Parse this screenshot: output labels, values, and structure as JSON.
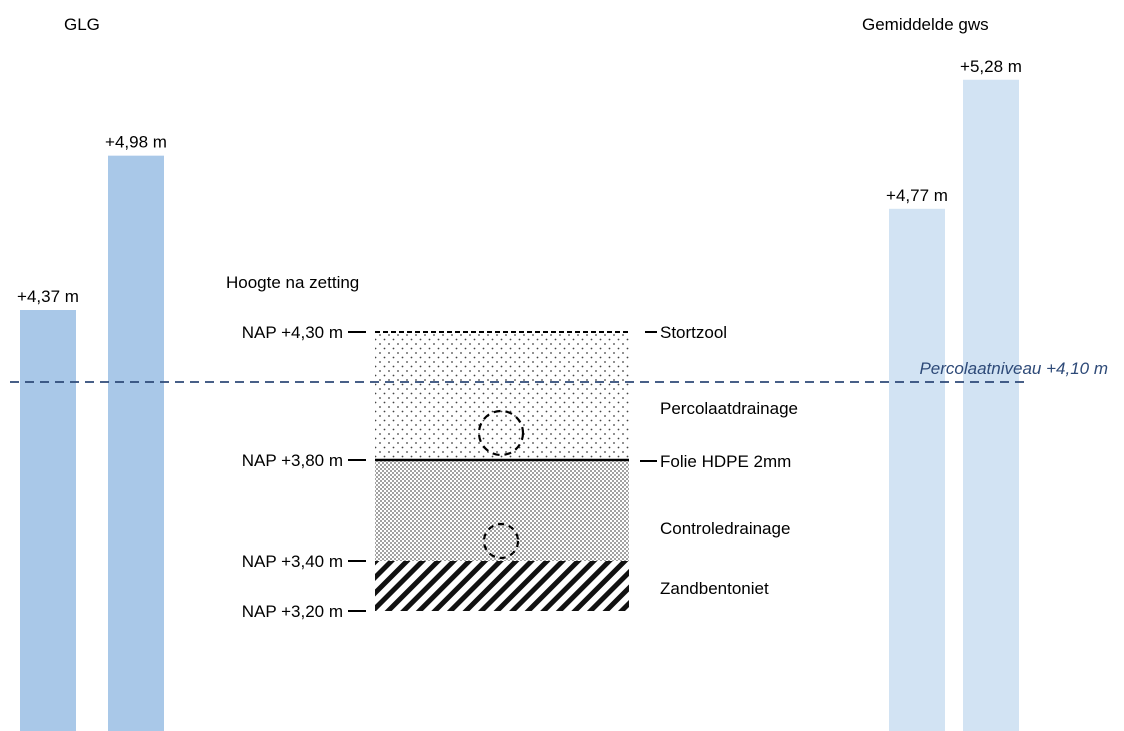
{
  "headers": {
    "glg": "GLG",
    "gws": "Gemiddelde gws"
  },
  "subtitle": "Hoogte na zetting",
  "colors": {
    "glg_bar": "#a9c8e8",
    "gws_bar": "#d2e3f3",
    "percolaat_line": "#2e4a78"
  },
  "columns": [
    {
      "label": "+4,37 m",
      "level_m": 4.37,
      "group": "glg"
    },
    {
      "label": "+4,98 m",
      "level_m": 4.98,
      "group": "glg"
    },
    {
      "label": "+4,77 m",
      "level_m": 4.77,
      "group": "gws"
    },
    {
      "label": "+5,28 m",
      "level_m": 5.28,
      "group": "gws"
    }
  ],
  "percolaat": {
    "label": "Percolaatniveau +4,10 m",
    "level_m": 4.1
  },
  "nap_levels": [
    {
      "label": "NAP +4,30 m",
      "level_m": 4.3
    },
    {
      "label": "NAP +3,80 m",
      "level_m": 3.8
    },
    {
      "label": "NAP +3,40 m",
      "level_m": 3.4
    },
    {
      "label": "NAP +3,20 m",
      "level_m": 3.2
    }
  ],
  "layers": [
    {
      "label": "Stortzool",
      "pattern": "dashed-line"
    },
    {
      "label": "Percolaatdrainage",
      "pattern": "sparse-dots"
    },
    {
      "label": "Folie HDPE 2mm",
      "pattern": "solid-line"
    },
    {
      "label": "Controledrainage",
      "pattern": "dense-dots"
    },
    {
      "label": "Zandbentoniet",
      "pattern": "diagonal-hatch"
    }
  ],
  "drain_pipes": [
    {
      "layer": "Percolaatdrainage",
      "icon": "dashed-circle-icon"
    },
    {
      "layer": "Controledrainage",
      "icon": "dashed-circle-icon"
    }
  ]
}
